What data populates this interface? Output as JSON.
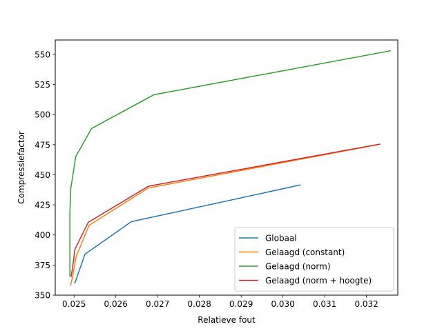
{
  "chart_data": {
    "type": "line",
    "xlabel": "Relatieve fout",
    "ylabel": "Compressiefactor",
    "xlim": [
      0.02455,
      0.03275
    ],
    "ylim": [
      350,
      562
    ],
    "xticks": [
      0.025,
      0.026,
      0.027,
      0.028,
      0.029,
      0.03,
      0.031,
      0.032
    ],
    "xtick_labels": [
      "0.025",
      "0.026",
      "0.027",
      "0.028",
      "0.029",
      "0.030",
      "0.031",
      "0.032"
    ],
    "yticks": [
      350,
      375,
      400,
      425,
      450,
      475,
      500,
      525,
      550
    ],
    "ytick_labels": [
      "350",
      "375",
      "400",
      "425",
      "450",
      "475",
      "500",
      "525",
      "550"
    ],
    "grid": false,
    "legend_position": "lower-right",
    "series": [
      {
        "name": "Globaal",
        "color": "#1f77b4",
        "points": [
          [
            0.02502,
            360
          ],
          [
            0.02526,
            384
          ],
          [
            0.02637,
            411
          ],
          [
            0.03041,
            441.5
          ]
        ]
      },
      {
        "name": "Gelaagd (constant)",
        "color": "#ff7f0e",
        "points": [
          [
            0.02492,
            358.5
          ],
          [
            0.02497,
            366
          ],
          [
            0.02505,
            382
          ],
          [
            0.02536,
            408
          ],
          [
            0.02678,
            439
          ],
          [
            0.03227,
            475
          ]
        ]
      },
      {
        "name": "Gelaagd (norm)",
        "color": "#2ca02c",
        "points": [
          [
            0.0249,
            366
          ],
          [
            0.0249,
            418
          ],
          [
            0.02492,
            438
          ],
          [
            0.02504,
            465
          ],
          [
            0.02542,
            488.5
          ],
          [
            0.02691,
            516.5
          ],
          [
            0.03257,
            553
          ]
        ]
      },
      {
        "name": "Gelaagd (norm + hoogte)",
        "color": "#d62728",
        "points": [
          [
            0.02493,
            365.5
          ],
          [
            0.02497,
            374
          ],
          [
            0.02502,
            388
          ],
          [
            0.02534,
            410.5
          ],
          [
            0.02678,
            440.5
          ],
          [
            0.03232,
            475.5
          ]
        ]
      }
    ]
  }
}
